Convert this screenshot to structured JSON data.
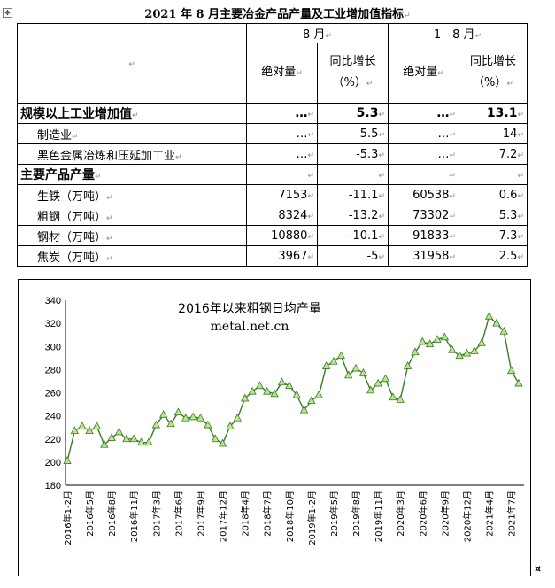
{
  "document": {
    "title": "2021 年 8 月主要冶金产品产量及工业增加值指标",
    "paragraph_mark": "↵",
    "cell_mark": "↵",
    "end_mark": "¤",
    "move_handle_glyph": "✥"
  },
  "table": {
    "period_headers": [
      "8 月",
      "1—8 月"
    ],
    "sub_headers": [
      "绝对量",
      "同比增长（%）",
      "绝对量",
      "同比增长（%）"
    ],
    "rows": [
      {
        "label": "规模以上工业增加值",
        "bold": true,
        "indent": false,
        "values": [
          "…",
          "5.3",
          "…",
          "13.1"
        ]
      },
      {
        "label": "制造业",
        "bold": false,
        "indent": true,
        "values": [
          "…",
          "5.5",
          "…",
          "14"
        ]
      },
      {
        "label": "黑色金属冶炼和压延加工业",
        "bold": false,
        "indent": true,
        "values": [
          "…",
          "-5.3",
          "…",
          "7.2"
        ]
      },
      {
        "label": "主要产品产量",
        "bold": true,
        "indent": false,
        "values": [
          "",
          "",
          "",
          ""
        ]
      },
      {
        "label": "生铁（万吨）",
        "bold": false,
        "indent": true,
        "values": [
          "7153",
          "-11.1",
          "60538",
          "0.6"
        ]
      },
      {
        "label": "粗钢（万吨）",
        "bold": false,
        "indent": true,
        "values": [
          "8324",
          "-13.2",
          "73302",
          "5.3"
        ]
      },
      {
        "label": "钢材（万吨）",
        "bold": false,
        "indent": true,
        "values": [
          "10880",
          "-10.1",
          "91833",
          "7.3"
        ]
      },
      {
        "label": "焦炭（万吨）",
        "bold": false,
        "indent": true,
        "values": [
          "3967",
          "-5",
          "31958",
          "2.5"
        ]
      }
    ]
  },
  "chart_data": {
    "type": "line",
    "title": "2016年以来粗钢日均产量",
    "subtitle": "metal.net.cn",
    "xlabel": "",
    "ylabel": "",
    "ylim": [
      180,
      340
    ],
    "yticks": [
      180,
      200,
      220,
      240,
      260,
      280,
      300,
      320,
      340
    ],
    "grid": false,
    "legend": "none",
    "line_color": "#3c7a2a",
    "marker_color": "#b8e88a",
    "x_tick_labels": [
      "2016年1-2月",
      "2016年5月",
      "2016年8月",
      "2016年11月",
      "2017年3月",
      "2017年6月",
      "2017年9月",
      "2017年12月",
      "2018年4月",
      "2018年7月",
      "2018年10月",
      "2019年1-2月",
      "2019年5月",
      "2019年8月",
      "2019年11月",
      "2020年3月",
      "2020年6月",
      "2020年9月",
      "2020年12月",
      "2021年4月",
      "2021年7月"
    ],
    "x": [
      "2016年1-2月",
      "2016年3月",
      "2016年4月",
      "2016年5月",
      "2016年6月",
      "2016年7月",
      "2016年8月",
      "2016年9月",
      "2016年10月",
      "2016年11月",
      "2016年12月",
      "2017年1-2月",
      "2017年3月",
      "2017年4月",
      "2017年5月",
      "2017年6月",
      "2017年7月",
      "2017年8月",
      "2017年9月",
      "2017年10月",
      "2017年11月",
      "2017年12月",
      "2018年1-2月",
      "2018年3月",
      "2018年4月",
      "2018年5月",
      "2018年6月",
      "2018年7月",
      "2018年8月",
      "2018年9月",
      "2018年10月",
      "2018年11月",
      "2018年12月",
      "2019年1-2月",
      "2019年3月",
      "2019年4月",
      "2019年5月",
      "2019年6月",
      "2019年7月",
      "2019年8月",
      "2019年9月",
      "2019年10月",
      "2019年11月",
      "2019年12月",
      "2020年1-2月",
      "2020年3月",
      "2020年4月",
      "2020年5月",
      "2020年6月",
      "2020年7月",
      "2020年8月",
      "2020年9月",
      "2020年10月",
      "2020年11月",
      "2020年12月",
      "2021年1-2月",
      "2021年3月",
      "2021年4月",
      "2021年5月",
      "2021年6月",
      "2021年7月",
      "2021年8月"
    ],
    "values": [
      201,
      227,
      231,
      227,
      231,
      215,
      221,
      226,
      220,
      220,
      217,
      217,
      232,
      241,
      233,
      243,
      238,
      239,
      238,
      232,
      220,
      216,
      231,
      238,
      255,
      261,
      266,
      261,
      259,
      269,
      266,
      258,
      245,
      253,
      258,
      283,
      287,
      292,
      275,
      281,
      277,
      262,
      268,
      272,
      256,
      254,
      283,
      295,
      304,
      302,
      306,
      308,
      297,
      292,
      294,
      296,
      303,
      326,
      320,
      313,
      279,
      268
    ]
  }
}
